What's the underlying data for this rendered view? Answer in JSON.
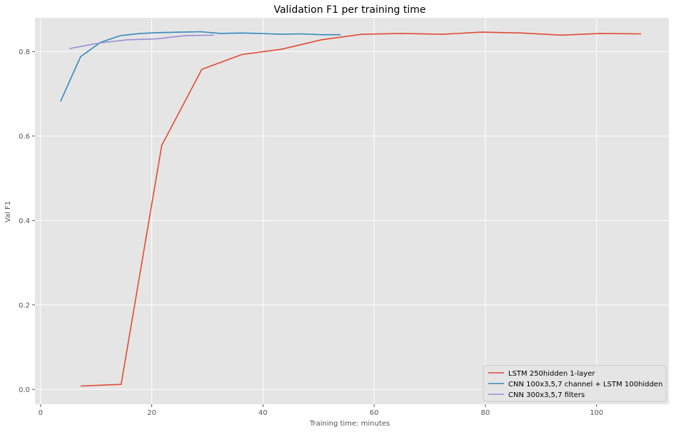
{
  "chart_data": {
    "type": "line",
    "title": "Validation F1 per training time",
    "xlabel": "Training time: minutes",
    "ylabel": "Val F1",
    "xlim": [
      -1,
      113
    ],
    "ylim": [
      -0.035,
      0.88
    ],
    "xticks": [
      0,
      20,
      40,
      60,
      80,
      100
    ],
    "yticks": [
      0.0,
      0.2,
      0.4,
      0.6,
      0.8
    ],
    "ytick_labels": [
      "0.0",
      "0.2",
      "0.4",
      "0.6",
      "0.8"
    ],
    "grid": true,
    "legend_position": "lower-right",
    "style": {
      "background": "#e5e5e5",
      "grid_color": "#ffffff"
    },
    "series": [
      {
        "name": "LSTM 250hidden 1-layer",
        "color": "#e24a33",
        "x": [
          7.2,
          14.5,
          21.8,
          29.0,
          36.2,
          43.5,
          50.5,
          57.8,
          65.0,
          72.2,
          79.3,
          86.5,
          93.7,
          100.8,
          108.0
        ],
        "y": [
          0.008,
          0.012,
          0.578,
          0.758,
          0.793,
          0.806,
          0.828,
          0.841,
          0.843,
          0.841,
          0.846,
          0.844,
          0.839,
          0.843,
          0.842
        ]
      },
      {
        "name": "CNN 100x3,5,7 channel + LSTM 100hidden",
        "color": "#348abd",
        "x": [
          3.6,
          7.2,
          10.8,
          14.4,
          18.0,
          21.6,
          25.2,
          28.8,
          32.4,
          36.0,
          39.6,
          43.2,
          46.8,
          50.4,
          54.0
        ],
        "y": [
          0.682,
          0.788,
          0.822,
          0.838,
          0.843,
          0.845,
          0.846,
          0.847,
          0.843,
          0.844,
          0.843,
          0.841,
          0.842,
          0.84,
          0.84
        ]
      },
      {
        "name": "CNN 300x3,5,7 filters",
        "color": "#988ed5",
        "x": [
          5.2,
          10.4,
          15.6,
          20.8,
          26.0,
          31.2
        ],
        "y": [
          0.807,
          0.82,
          0.828,
          0.83,
          0.838,
          0.839
        ]
      }
    ]
  }
}
